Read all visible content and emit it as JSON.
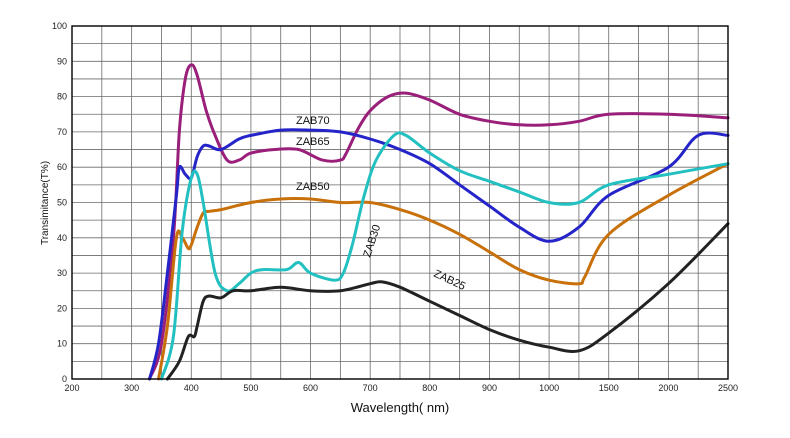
{
  "chart_data": {
    "type": "line",
    "title": "",
    "xlabel": "Wavelength( nm)",
    "ylabel": "Transimitance(T%)",
    "ylim": [
      0,
      100
    ],
    "x_ticks": [
      "200",
      "300",
      "400",
      "500",
      "600",
      "700",
      "800",
      "900",
      "1000",
      "1500",
      "2000",
      "2500"
    ],
    "y_ticks": [
      "0",
      "10",
      "20",
      "30",
      "40",
      "50",
      "60",
      "70",
      "80",
      "90",
      "100"
    ],
    "grid": true,
    "series": [
      {
        "name": "ZAB70",
        "color": "#9a1f7a",
        "x": [
          330,
          350,
          370,
          380,
          390,
          400,
          410,
          425,
          440,
          460,
          480,
          500,
          540,
          580,
          620,
          650,
          660,
          680,
          700,
          730,
          760,
          800,
          850,
          900,
          950,
          1000,
          1250,
          1500,
          2000,
          2500
        ],
        "y": [
          0,
          10,
          40,
          70,
          85,
          89,
          86,
          76,
          69,
          62,
          62,
          64,
          65,
          65,
          62,
          62,
          64,
          71,
          76,
          80,
          81,
          79,
          75,
          73,
          72,
          72,
          73,
          75,
          75,
          74
        ]
      },
      {
        "name": "ZAB65",
        "color": "#2424c8",
        "x": [
          330,
          345,
          360,
          375,
          380,
          390,
          400,
          410,
          420,
          430,
          450,
          480,
          500,
          550,
          600,
          650,
          700,
          750,
          800,
          850,
          900,
          950,
          1000,
          1250,
          1500,
          2000,
          2250,
          2500
        ],
        "y": [
          0,
          10,
          30,
          52,
          60,
          58,
          57,
          63,
          66,
          66,
          65,
          68,
          69,
          70.5,
          70.5,
          70,
          68,
          65,
          61,
          55,
          49,
          43,
          39,
          43,
          52,
          60,
          69,
          69
        ]
      },
      {
        "name": "ZAB50",
        "color": "#c8700a",
        "x": [
          345,
          360,
          375,
          385,
          395,
          400,
          410,
          420,
          430,
          450,
          500,
          550,
          600,
          650,
          700,
          750,
          800,
          850,
          900,
          950,
          1000,
          1250,
          1300,
          1500,
          2000,
          2500
        ],
        "y": [
          0,
          15,
          40,
          40,
          37,
          38,
          43,
          47,
          47.5,
          48,
          50,
          51,
          51,
          50,
          50,
          48,
          45,
          41,
          36,
          31,
          28,
          27,
          29,
          41,
          52,
          61
        ]
      },
      {
        "name": "ZAB30",
        "color": "#22c0c0",
        "x": [
          350,
          370,
          385,
          400,
          410,
          420,
          440,
          460,
          480,
          500,
          520,
          560,
          580,
          600,
          640,
          655,
          670,
          690,
          710,
          740,
          760,
          800,
          850,
          900,
          950,
          1000,
          1250,
          1500,
          2000,
          2500
        ],
        "y": [
          0,
          12,
          42,
          57,
          58,
          50,
          30,
          25,
          27,
          30,
          31,
          31,
          33,
          30,
          28,
          30,
          38,
          52,
          62,
          69,
          69,
          64,
          59,
          56,
          53,
          50,
          50,
          55,
          58,
          61
        ]
      },
      {
        "name": "ZAB25",
        "color": "#222222",
        "x": [
          360,
          380,
          395,
          405,
          410,
          420,
          430,
          450,
          470,
          500,
          550,
          600,
          650,
          700,
          720,
          750,
          800,
          850,
          900,
          950,
          1000,
          1250,
          1500,
          2000,
          2500
        ],
        "y": [
          0,
          5,
          12,
          12,
          15,
          22,
          23.5,
          23,
          25,
          25,
          26,
          25,
          25,
          27,
          27.5,
          26,
          22,
          18,
          14,
          11,
          9,
          8,
          13,
          27,
          44
        ]
      }
    ]
  },
  "labels": {
    "zab70": "ZAB70",
    "zab65": "ZAB65",
    "zab50": "ZAB50",
    "zab30": "ZAB30",
    "zab25": "ZAB25"
  }
}
